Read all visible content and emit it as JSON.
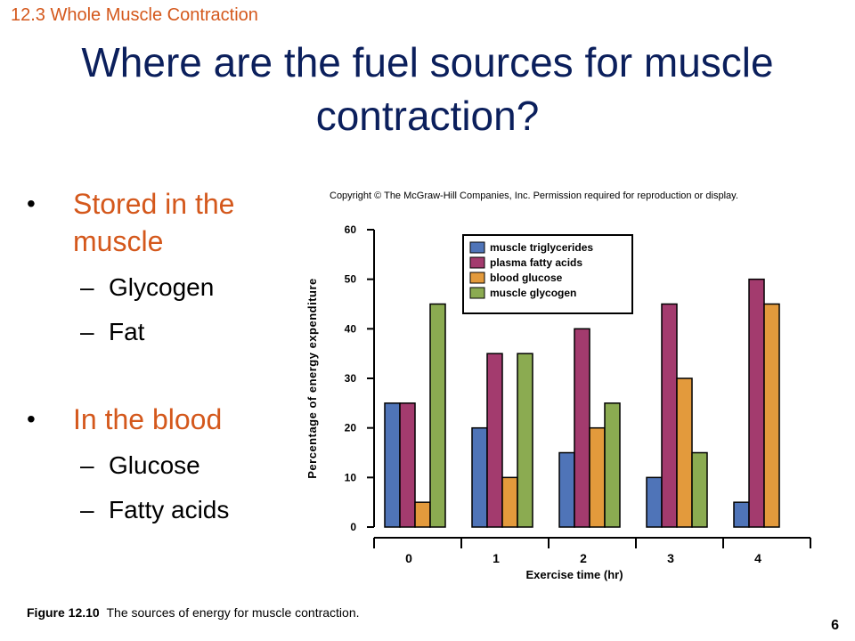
{
  "header": {
    "section": "12.3 Whole Muscle Contraction",
    "title": "Where are the fuel sources for muscle contraction?"
  },
  "bullets": [
    {
      "heading": "Stored in the muscle",
      "items": [
        "Glycogen",
        "Fat"
      ]
    },
    {
      "heading": "In the blood",
      "items": [
        "Glucose",
        "Fatty acids"
      ]
    }
  ],
  "copyright": "Copyright © The McGraw-Hill Companies, Inc. Permission required for reproduction or display.",
  "chart_data": {
    "type": "bar",
    "categories": [
      "0",
      "1",
      "2",
      "3",
      "4"
    ],
    "xlabel": "Exercise time (hr)",
    "ylabel": "Percentage of energy expenditure",
    "ylim": [
      0,
      60
    ],
    "yticks": [
      0,
      10,
      20,
      30,
      40,
      50,
      60
    ],
    "legend_position": "top-left inside plot",
    "series": [
      {
        "name": "muscle triglycerides",
        "color": "#4f74b8",
        "values": [
          25,
          20,
          15,
          10,
          5
        ]
      },
      {
        "name": "plasma fatty acids",
        "color": "#a33b6e",
        "values": [
          25,
          35,
          40,
          45,
          50
        ]
      },
      {
        "name": "blood glucose",
        "color": "#e39a3c",
        "values": [
          5,
          10,
          20,
          30,
          45
        ]
      },
      {
        "name": "muscle glycogen",
        "color": "#8bab51",
        "values": [
          45,
          35,
          25,
          15,
          null
        ]
      }
    ]
  },
  "caption": {
    "label": "Figure 12.10",
    "text": "The sources of energy for muscle contraction."
  },
  "page_number": "6"
}
